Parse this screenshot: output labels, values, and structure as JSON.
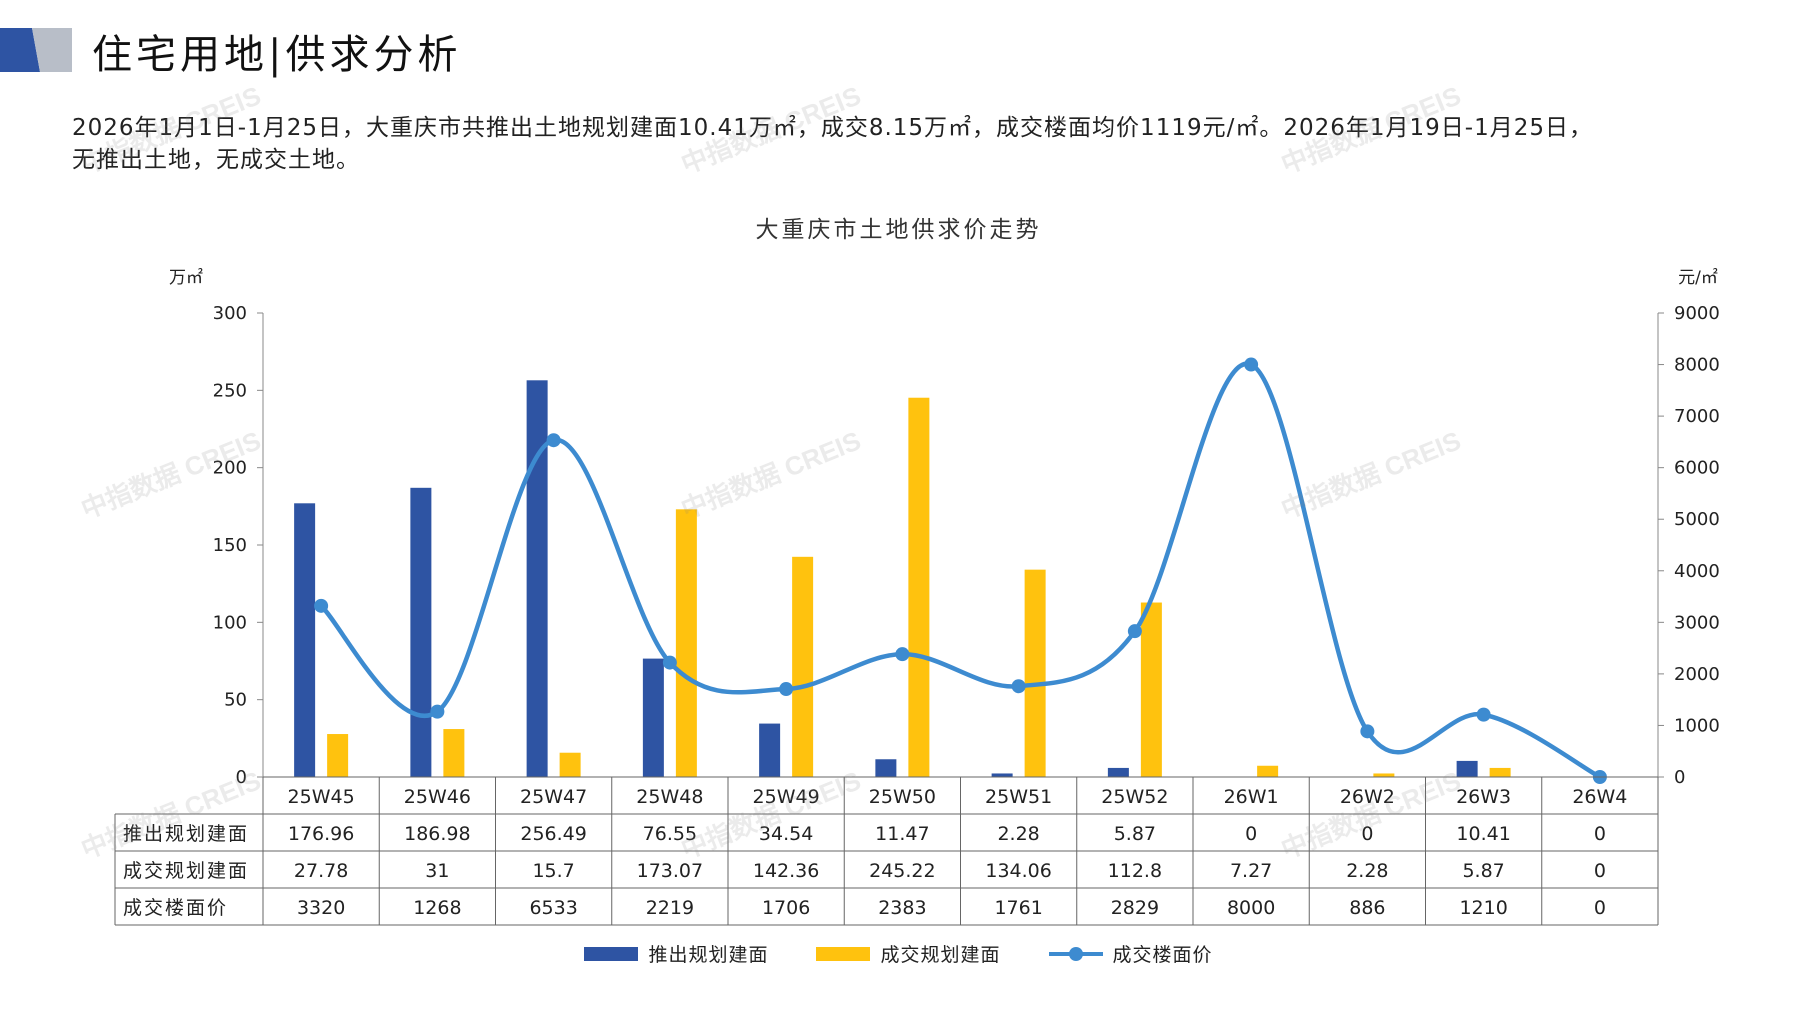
{
  "page": {
    "title": "住宅用地|供求分析",
    "summary_line1": "2026年1月1日-1月25日，大重庆市共推出土地规划建面10.41万㎡，成交8.15万㎡，成交楼面均价1119元/㎡。2026年1月19日-1月25日，",
    "summary_line2": "无推出土地，无成交土地。",
    "watermark": "中指数据 CREIS"
  },
  "colors": {
    "supply": "#2E54A3",
    "deal": "#FFC20E",
    "price": "#3D8BD0",
    "title_mark_dark": "#2E54A3",
    "title_mark_light": "#B8BEC8"
  },
  "chart_data": {
    "type": "bar",
    "title": "大重庆市土地供求价走势",
    "left_unit": "万㎡",
    "right_unit": "元/㎡",
    "categories": [
      "25W45",
      "25W46",
      "25W47",
      "25W48",
      "25W49",
      "25W50",
      "25W51",
      "25W52",
      "26W1",
      "26W2",
      "26W3",
      "26W4"
    ],
    "y_left": {
      "min": 0,
      "max": 300,
      "ticks": [
        0,
        50,
        100,
        150,
        200,
        250,
        300
      ]
    },
    "y_right": {
      "min": 0,
      "max": 9000,
      "ticks": [
        0,
        1000,
        2000,
        3000,
        4000,
        5000,
        6000,
        7000,
        8000,
        9000
      ]
    },
    "series": [
      {
        "name": "推出规划建面",
        "type": "bar",
        "axis": "left",
        "values": [
          176.96,
          186.98,
          256.49,
          76.55,
          34.54,
          11.47,
          2.28,
          5.87,
          0,
          0,
          10.41,
          0
        ],
        "labels": [
          "176.96",
          "186.98",
          "256.49",
          "76.55",
          "34.54",
          "11.47",
          "2.28",
          "5.87",
          "0",
          "0",
          "10.41",
          "0"
        ]
      },
      {
        "name": "成交规划建面",
        "type": "bar",
        "axis": "left",
        "values": [
          27.78,
          31,
          15.7,
          173.07,
          142.36,
          245.22,
          134.06,
          112.8,
          7.27,
          2.28,
          5.87,
          0
        ],
        "labels": [
          "27.78",
          "31",
          "15.7",
          "173.07",
          "142.36",
          "245.22",
          "134.06",
          "112.8",
          "7.27",
          "2.28",
          "5.87",
          "0"
        ]
      },
      {
        "name": "成交楼面价",
        "type": "line",
        "axis": "right",
        "values": [
          3320,
          1268,
          6533,
          2219,
          1706,
          2383,
          1761,
          2829,
          8000,
          886,
          1210,
          0
        ],
        "labels": [
          "3320",
          "1268",
          "6533",
          "2219",
          "1706",
          "2383",
          "1761",
          "2829",
          "8000",
          "886",
          "1210",
          "0"
        ]
      }
    ],
    "grid": false,
    "legend": "bottom-center",
    "data_table": true
  }
}
